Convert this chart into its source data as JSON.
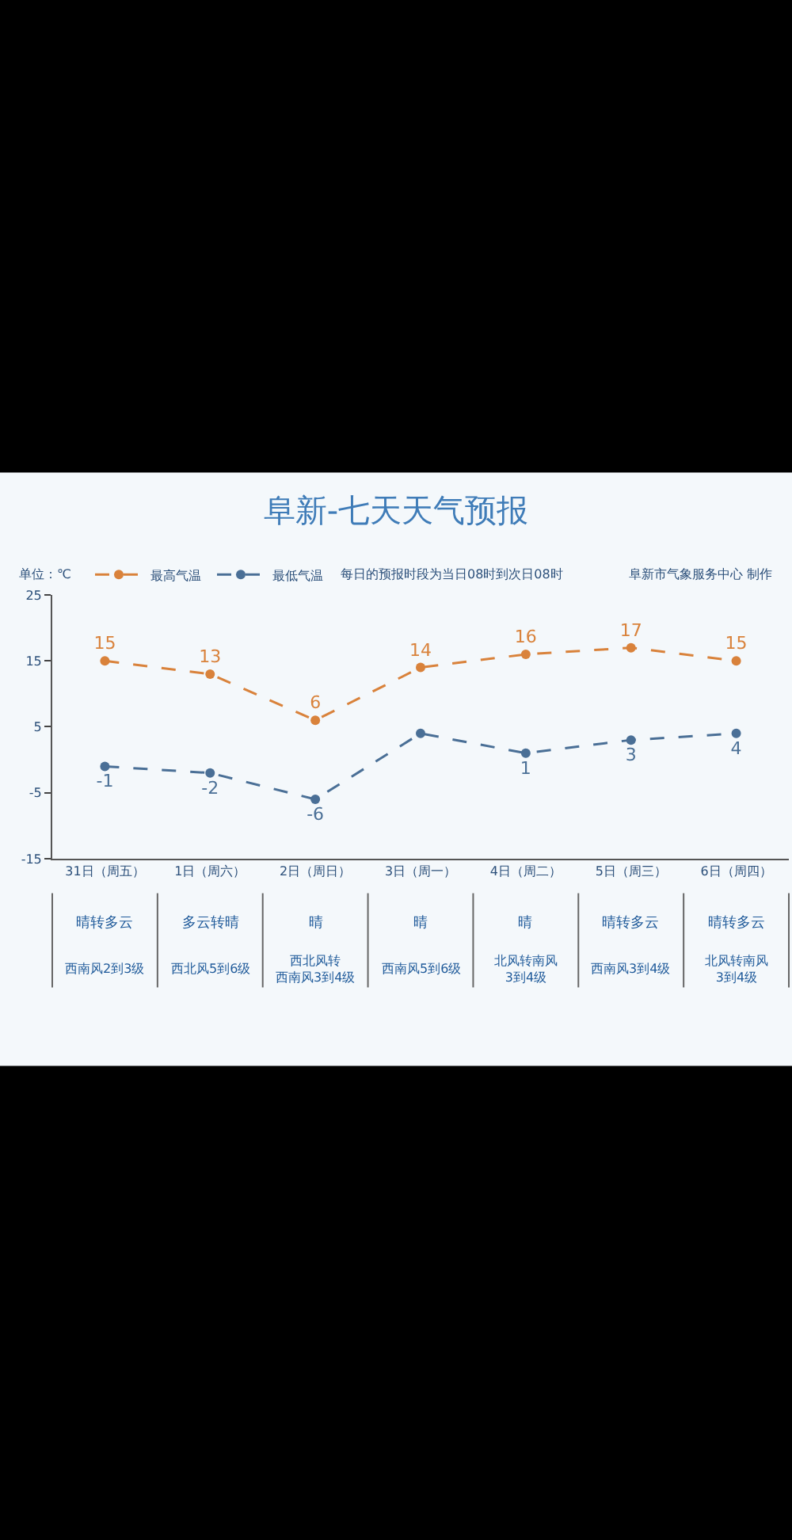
{
  "chart_data": {
    "type": "line",
    "title": "阜新-七天天气预报",
    "ylabel": "单位：℃",
    "categories": [
      "31日（周五）",
      "1日（周六）",
      "2日（周日）",
      "3日（周一）",
      "4日（周二）",
      "5日（周三）",
      "6日（周四）"
    ],
    "series": [
      {
        "name": "最高气温",
        "color": "#d9823b",
        "values": [
          15,
          13,
          6,
          14,
          16,
          17,
          15
        ],
        "value_labels": [
          "15",
          "13",
          "6",
          "14",
          "16",
          "17",
          "15"
        ]
      },
      {
        "name": "最低气温",
        "color": "#4a6f96",
        "values": [
          -1,
          -2,
          -6,
          4,
          1,
          3,
          4
        ],
        "value_labels": [
          "-1",
          "-2",
          "-6",
          null,
          "1",
          "3",
          "4"
        ]
      }
    ],
    "ylim": [
      -15,
      25
    ],
    "yticks": [
      -15,
      -5,
      5,
      15,
      25
    ],
    "grid": false,
    "legend": "top left",
    "marker": "circle",
    "line_style": "dashed",
    "annotations": [
      "每日的预报时段为当日08时到次日08时",
      "阜新市气象服务中心 制作",
      "晴转多云",
      "多云转晴",
      "晴",
      "晴",
      "晴",
      "晴转多云",
      "晴转多云",
      "西南风2到3级",
      "西北风5到6级",
      "西北风转西南风3到4级",
      "西南风5到6级",
      "北风转南风3到4级",
      "西南风3到4级",
      "北风转南风3到4级"
    ]
  }
}
